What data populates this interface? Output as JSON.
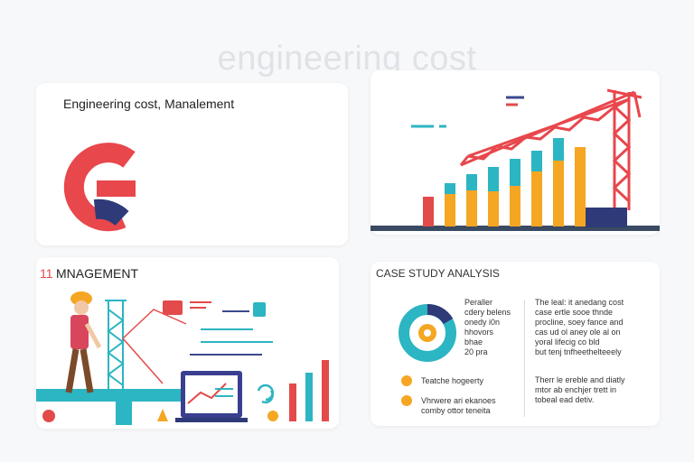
{
  "page": {
    "hero_title": "engineering cost"
  },
  "card_top_left": {
    "title": "Engineering cost, Manalement"
  },
  "card_top_right": {
    "bar_series_colors": [
      "#f5a623",
      "#2cb5c2",
      "#e34a4a",
      "#2f3a78"
    ]
  },
  "card_bottom_left": {
    "number": "11",
    "title": "MNAGEMENT",
    "bar_colors": [
      "#e34a4a",
      "#2cb5c2"
    ],
    "icons": [
      "worker-icon",
      "tower-icon",
      "laptop-chart-icon",
      "cycle-arrows-icon",
      "gear-icon",
      "cone-icon"
    ]
  },
  "card_bottom_right": {
    "title": "CASE STUDY ANALYSIS",
    "donut_desc": "Peraller\ncdery belens\nonedy i0n\nhhovors\nbhae\n20 pra",
    "legend_items": [
      {
        "label": "Teatche hogeerty",
        "color": "#f5a623"
      },
      {
        "label": "Vhrwere ari ekanoes\ncomby ottor teneita",
        "color": "#f5a623"
      }
    ],
    "right_paragraph_1": "The leal: it anedang cost\ncase ertle sooe thnde\nprocline, soey fance and\ncas ud ol aney ole al on\nyoral lifecig co bld\nbut tenj tnfheethelteeely",
    "right_paragraph_2": "Therr le ereble and diatly\nmtor ab enchjer trett in\ntobeal ead detiv."
  }
}
